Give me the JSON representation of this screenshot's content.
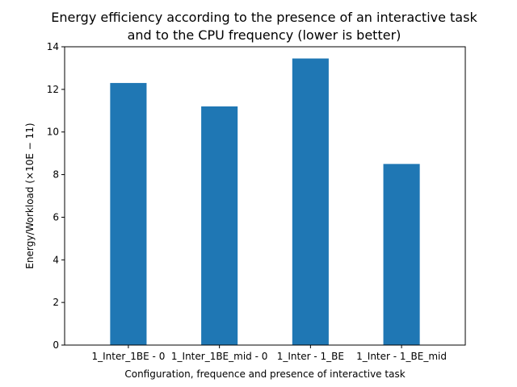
{
  "chart_data": {
    "type": "bar",
    "title": [
      "Energy efficiency according to the presence of an interactive task",
      "and to the CPU frequency (lower is better)"
    ],
    "xlabel": "Configuration, frequence and presence of interactive task",
    "ylabel": "Energy/Workload (×10E − 11)",
    "categories": [
      "1_Inter_1BE - 0",
      "1_Inter_1BE_mid - 0",
      "1_Inter - 1_BE",
      "1_Inter - 1_BE_mid"
    ],
    "values": [
      12.3,
      11.2,
      13.45,
      8.5
    ],
    "ylim": [
      0,
      14
    ],
    "yticks": [
      0,
      2,
      4,
      6,
      8,
      10,
      12,
      14
    ],
    "grid": false,
    "bar_color": "#1f77b4"
  }
}
